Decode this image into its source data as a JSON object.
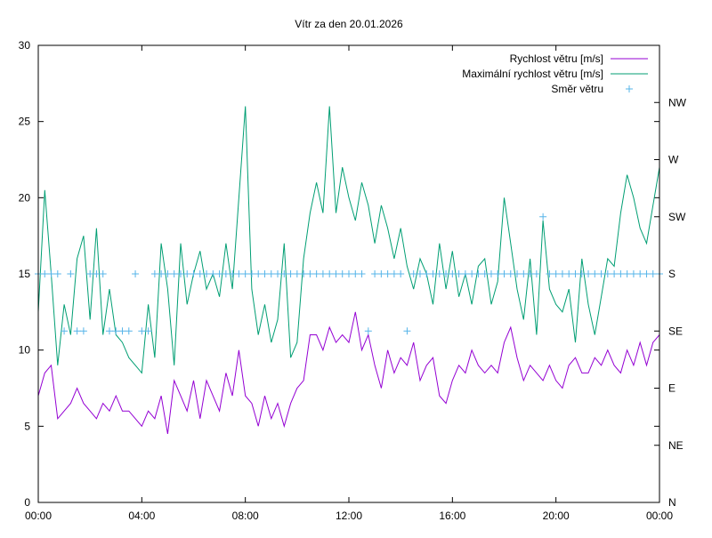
{
  "chart_data": {
    "type": "line",
    "title": "Vítr za den 20.01.2026",
    "xlabel": "",
    "ylabel": "",
    "ylim": [
      0,
      30
    ],
    "yticks": [
      0,
      5,
      10,
      15,
      20,
      25,
      30
    ],
    "xlim_hours": [
      0,
      24
    ],
    "xtick_labels": [
      "00:00",
      "04:00",
      "08:00",
      "12:00",
      "16:00",
      "20:00",
      "00:00"
    ],
    "y2_tick_labels": [
      "N",
      "NE",
      "E",
      "SE",
      "S",
      "SW",
      "W",
      "NW"
    ],
    "y2_note": "direction degrees mapped 0–360 onto 0–30",
    "legend_position": "top-right",
    "x_step_minutes": 15,
    "series": [
      {
        "name": "Rychlost větru [m/s]",
        "color": "#9400d3",
        "style": "line",
        "values": [
          7,
          8.5,
          9,
          5.5,
          6,
          6.5,
          7.5,
          6.5,
          6,
          5.5,
          6.5,
          6,
          7,
          6,
          6,
          5.5,
          5,
          6,
          5.5,
          7,
          4.5,
          8,
          7,
          6,
          8,
          5.5,
          8,
          7,
          6,
          8.5,
          7,
          10,
          7,
          6.5,
          5,
          7,
          5.5,
          6.5,
          5,
          6.5,
          7.5,
          8,
          11,
          11,
          10,
          11.5,
          10.5,
          11,
          10.5,
          12.5,
          10,
          11,
          9,
          7.5,
          10,
          8.5,
          9.5,
          9,
          10.5,
          8,
          9,
          9.5,
          7,
          6.5,
          8,
          9,
          8.5,
          10,
          9,
          8.5,
          9,
          8.5,
          10.5,
          11.5,
          9.5,
          8,
          9,
          8.5,
          8,
          9,
          8,
          7.5,
          9,
          9.5,
          8.5,
          8.5,
          9.5,
          9,
          10,
          9,
          8.5,
          10,
          9,
          10.5,
          9,
          10.5,
          11
        ]
      },
      {
        "name": "Maximální rychlost větru [m/s]",
        "color": "#009e73",
        "style": "line",
        "values": [
          12.5,
          20.5,
          15,
          9,
          13,
          11,
          16,
          17.5,
          12,
          18,
          11,
          14,
          11,
          10.5,
          9.5,
          9,
          8.5,
          13,
          9.5,
          17,
          14,
          9,
          17,
          13,
          15,
          16.5,
          14,
          15,
          13.5,
          17,
          14,
          20,
          26,
          14,
          11,
          13,
          10.5,
          12,
          17,
          9.5,
          10.5,
          16,
          19,
          21,
          19,
          26,
          19,
          22,
          20,
          18.5,
          21,
          19.5,
          17,
          19.5,
          18,
          16,
          18,
          15.5,
          14,
          16,
          15,
          13,
          17,
          14,
          16.5,
          13.5,
          15,
          13,
          15.5,
          16,
          13,
          14.5,
          20,
          17,
          14,
          12,
          16,
          11,
          18.5,
          14,
          13,
          12.5,
          14,
          10.5,
          16,
          13,
          11,
          13.5,
          16,
          15.5,
          19,
          21.5,
          20,
          18,
          17,
          19.5,
          22
        ]
      },
      {
        "name": "Směr větru",
        "color": "#56b4e9",
        "style": "points",
        "unit": "degrees",
        "values": [
          180,
          180,
          180,
          180,
          135,
          180,
          135,
          135,
          180,
          180,
          180,
          135,
          135,
          135,
          135,
          180,
          135,
          135,
          180,
          180,
          180,
          180,
          180,
          180,
          180,
          180,
          180,
          180,
          180,
          180,
          180,
          180,
          180,
          180,
          180,
          180,
          180,
          180,
          180,
          180,
          180,
          180,
          180,
          180,
          180,
          180,
          180,
          180,
          180,
          180,
          180,
          135,
          180,
          180,
          180,
          180,
          180,
          135,
          180,
          180,
          180,
          180,
          180,
          180,
          180,
          180,
          180,
          180,
          180,
          180,
          180,
          180,
          180,
          180,
          180,
          180,
          180,
          180,
          225,
          180,
          180,
          180,
          180,
          180,
          180,
          180,
          180,
          180,
          180,
          180,
          180,
          180,
          180,
          180,
          180,
          180,
          180
        ]
      }
    ]
  }
}
